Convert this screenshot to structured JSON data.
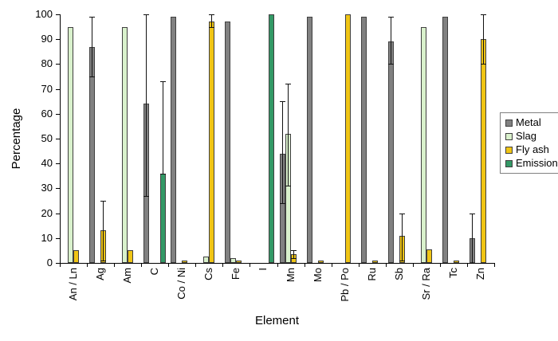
{
  "chart_data": {
    "type": "bar",
    "title": "",
    "xlabel": "Element",
    "ylabel": "Percentage",
    "ylim": [
      0,
      100
    ],
    "yticks": [
      0,
      10,
      20,
      30,
      40,
      50,
      60,
      70,
      80,
      90,
      100
    ],
    "grid": false,
    "legend": {
      "position": "right-middle",
      "entries": [
        "Metal",
        "Slag",
        "Fly ash",
        "Emission"
      ]
    },
    "categories": [
      "An / Ln",
      "Ag",
      "Am",
      "C",
      "Co / Ni",
      "Cs",
      "Fe",
      "I",
      "Mn",
      "Mo",
      "Pb / Po",
      "Ru",
      "Sb",
      "Sr / Ra",
      "Tc",
      "Zn"
    ],
    "series": [
      {
        "name": "Metal",
        "color": "#818181",
        "values": [
          null,
          87,
          null,
          64,
          99,
          null,
          97,
          null,
          44,
          99,
          null,
          99,
          89,
          null,
          99,
          10
        ],
        "errors": [
          null,
          [
            75,
            99
          ],
          null,
          [
            27,
            100
          ],
          null,
          null,
          null,
          null,
          [
            24,
            65
          ],
          null,
          null,
          null,
          [
            80,
            99
          ],
          null,
          null,
          [
            0,
            20
          ]
        ]
      },
      {
        "name": "Slag",
        "color": "#D9F1CC",
        "values": [
          95,
          null,
          95,
          null,
          null,
          2.5,
          2,
          null,
          52,
          null,
          null,
          null,
          null,
          95,
          null,
          null
        ],
        "errors": [
          null,
          null,
          null,
          null,
          null,
          null,
          null,
          null,
          [
            31,
            72
          ],
          null,
          null,
          null,
          null,
          null,
          null,
          null
        ]
      },
      {
        "name": "Fly ash",
        "color": "#F0C515",
        "values": [
          5,
          13,
          5,
          null,
          1,
          97,
          1,
          null,
          3.5,
          1,
          100,
          1,
          11,
          5.5,
          1,
          90
        ],
        "errors": [
          null,
          [
            1,
            25
          ],
          null,
          null,
          null,
          [
            95,
            100
          ],
          null,
          null,
          [
            2,
            5
          ],
          null,
          null,
          null,
          [
            1,
            20
          ],
          null,
          null,
          [
            80,
            100
          ]
        ]
      },
      {
        "name": "Emission",
        "color": "#339966",
        "values": [
          null,
          null,
          null,
          36,
          null,
          null,
          null,
          100,
          null,
          null,
          null,
          null,
          null,
          null,
          null,
          null
        ],
        "errors": [
          null,
          null,
          null,
          [
            36,
            73
          ],
          null,
          null,
          null,
          null,
          null,
          null,
          null,
          null,
          null,
          null,
          null,
          null
        ]
      }
    ]
  }
}
